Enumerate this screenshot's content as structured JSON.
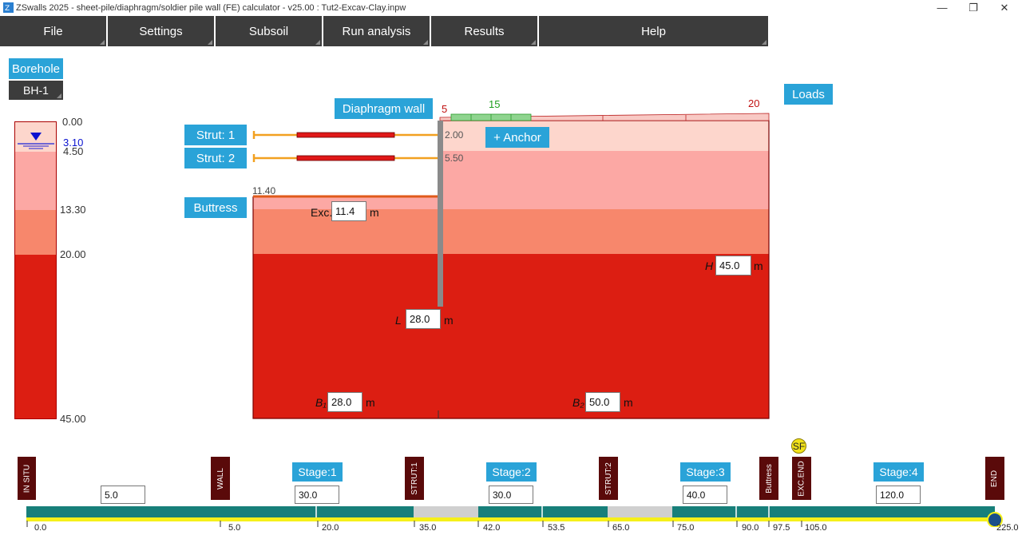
{
  "window": {
    "title": "ZSwalls 2025 - sheet-pile/diaphragm/soldier pile wall (FE) calculator - v25.00 : Tut2-Excav-Clay.inpw",
    "minimize": "—",
    "maximize": "❐",
    "close": "✕"
  },
  "menu": [
    "File",
    "Settings",
    "Subsoil",
    "Run analysis",
    "Results",
    "Help"
  ],
  "borehole": {
    "button": "Borehole",
    "name": "BH-1",
    "depths": [
      "0.00",
      "4.50",
      "13.30",
      "20.00",
      "45.00"
    ],
    "water_level": "3.10"
  },
  "colors": {
    "layer1": "#fdd6cc",
    "layer2": "#fca8a4",
    "layer3": "#f7876c",
    "layer4": "#dc1e12",
    "accent": "#2aa3d8",
    "menu": "#3c3c3c",
    "timeline": "#177f7a",
    "yellow": "#f6f01a"
  },
  "model": {
    "wall_button": "Diaphragm wall",
    "strut1": "Strut: 1",
    "strut2": "Strut: 2",
    "buttress": "Buttress",
    "anchor": "+ Anchor",
    "loads": "Loads",
    "strut1_depth": "2.00",
    "strut2_depth": "5.50",
    "buttress_level": "11.40",
    "load_left": "5",
    "load_green": "15",
    "load_right": "20",
    "exc_label": "Exc.",
    "exc_value": "11.4",
    "exc_unit": "m",
    "h_label": "H",
    "h_value": "45.0",
    "h_unit": "m",
    "l_label": "L",
    "l_value": "28.0",
    "l_unit": "m",
    "b1_label": "B₁",
    "b1_value": "28.0",
    "b1_unit": "m",
    "b2_label": "B₂",
    "b2_value": "50.0",
    "b2_unit": "m"
  },
  "timeline": {
    "markers": [
      "IN SITU",
      "WALL",
      "STRUT:1",
      "STRUT:2",
      "Buttress",
      "EXC.END",
      "END"
    ],
    "stages": [
      "Stage:1",
      "Stage:2",
      "Stage:3",
      "Stage:4"
    ],
    "durations": [
      "5.0",
      "30.0",
      "30.0",
      "40.0",
      "120.0"
    ],
    "ticks": [
      "0.0",
      "5.0",
      "20.0",
      "35.0",
      "42.0",
      "53.5",
      "65.0",
      "75.0",
      "90.0",
      "97.5",
      "105.0",
      "225.0"
    ],
    "sf": "SF"
  }
}
